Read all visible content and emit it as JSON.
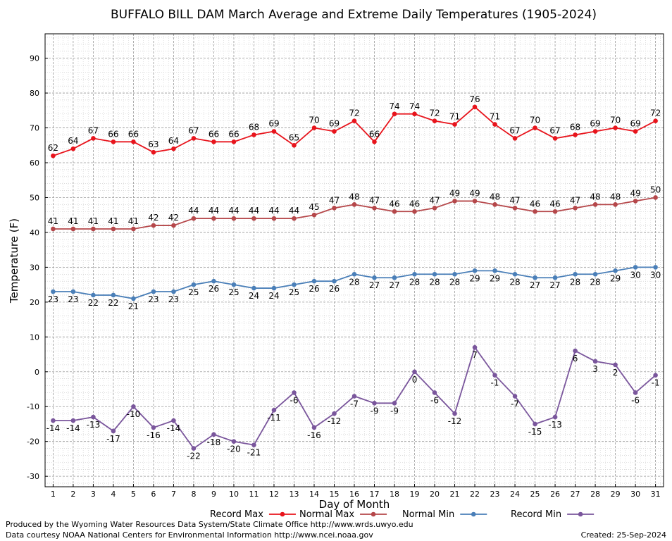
{
  "chart_data": {
    "type": "line",
    "title": "BUFFALO BILL DAM March Average and Extreme Daily Temperatures (1905-2024)",
    "xlabel": "Day of Month",
    "ylabel": "Temperature (F)",
    "x": [
      1,
      2,
      3,
      4,
      5,
      6,
      7,
      8,
      9,
      10,
      11,
      12,
      13,
      14,
      15,
      16,
      17,
      18,
      19,
      20,
      21,
      22,
      23,
      24,
      25,
      26,
      27,
      28,
      29,
      30,
      31
    ],
    "xlim": [
      0.6,
      31.4
    ],
    "ylim": [
      -33,
      97
    ],
    "yticks": [
      -30,
      -20,
      -10,
      0,
      10,
      20,
      30,
      40,
      50,
      60,
      70,
      80,
      90
    ],
    "grid": true,
    "legend_position": "bottom",
    "series": [
      {
        "name": "Record Max",
        "color": "#e8141c",
        "label_position": "above",
        "values": [
          62,
          64,
          67,
          66,
          66,
          63,
          64,
          67,
          66,
          66,
          68,
          69,
          65,
          70,
          69,
          72,
          66,
          74,
          74,
          72,
          71,
          76,
          71,
          67,
          70,
          67,
          68,
          69,
          70,
          69,
          72
        ]
      },
      {
        "name": "Normal Max",
        "color": "#b5474a",
        "label_position": "above",
        "values": [
          41,
          41,
          41,
          41,
          41,
          42,
          42,
          44,
          44,
          44,
          44,
          44,
          44,
          45,
          47,
          48,
          47,
          46,
          46,
          47,
          49,
          49,
          48,
          47,
          46,
          46,
          47,
          48,
          48,
          49,
          50
        ]
      },
      {
        "name": "Normal Min",
        "color": "#4a7fb8",
        "label_position": "below",
        "values": [
          23,
          23,
          22,
          22,
          21,
          23,
          23,
          25,
          26,
          25,
          24,
          24,
          25,
          26,
          26,
          28,
          27,
          27,
          28,
          28,
          28,
          29,
          29,
          28,
          27,
          27,
          28,
          28,
          29,
          30,
          30
        ]
      },
      {
        "name": "Record Min",
        "color": "#7a569c",
        "label_position": "below",
        "values": [
          -14,
          -14,
          -13,
          -17,
          -10,
          -16,
          -14,
          -22,
          -18,
          -20,
          -21,
          -11,
          -6,
          -16,
          -12,
          -7,
          -9,
          -9,
          0,
          -6,
          -12,
          7,
          -1,
          -7,
          -15,
          -13,
          6,
          3,
          2,
          -6,
          -1
        ]
      }
    ]
  },
  "footer": {
    "line1": "Produced by the Wyoming Water Resources Data System/State Climate Office http://www.wrds.uwyo.edu",
    "line2": "Data courtesy NOAA National Centers for Environmental Information http://www.ncei.noaa.gov",
    "created": "Created: 25-Sep-2024"
  }
}
